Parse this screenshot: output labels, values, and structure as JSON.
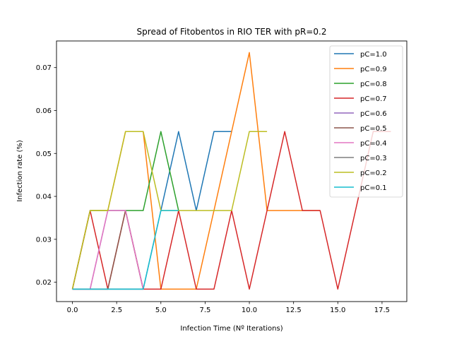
{
  "chart_data": {
    "type": "line",
    "title": "Spread of Fitobentos in RIO TER with pR=0.2",
    "xlabel": "Infection Time (Nº Iterations)",
    "ylabel": "Infection rate (%)",
    "xlim": [
      -0.9,
      18.9
    ],
    "ylim": [
      0.0155,
      0.0762
    ],
    "xticks": [
      0.0,
      2.5,
      5.0,
      7.5,
      10.0,
      12.5,
      15.0,
      17.5
    ],
    "xtick_labels": [
      "0.0",
      "2.5",
      "5.0",
      "7.5",
      "10.0",
      "12.5",
      "15.0",
      "17.5"
    ],
    "yticks": [
      0.02,
      0.03,
      0.04,
      0.05,
      0.06,
      0.07
    ],
    "ytick_labels": [
      "0.02",
      "0.03",
      "0.04",
      "0.05",
      "0.06",
      "0.07"
    ],
    "grid": false,
    "legend_position": "top-right",
    "series": [
      {
        "name": "pC=1.0",
        "color": "#1f77b4",
        "x": [
          0,
          1,
          2,
          3,
          4,
          5,
          6,
          7,
          8,
          9
        ],
        "y": [
          0.0184,
          0.0184,
          0.0184,
          0.0184,
          0.0184,
          0.0367,
          0.0551,
          0.0367,
          0.0551,
          0.0551
        ]
      },
      {
        "name": "pC=0.9",
        "color": "#ff7f0e",
        "x": [
          0,
          1,
          2,
          3,
          4,
          5,
          6,
          7,
          8,
          9,
          10,
          11,
          12,
          13,
          14
        ],
        "y": [
          0.0184,
          0.0367,
          0.0367,
          0.0551,
          0.0551,
          0.0184,
          0.0184,
          0.0184,
          0.0367,
          0.0551,
          0.0735,
          0.0367,
          0.0367,
          0.0367,
          0.0367
        ]
      },
      {
        "name": "pC=0.8",
        "color": "#2ca02c",
        "x": [
          0,
          1,
          2,
          3,
          4,
          5,
          6
        ],
        "y": [
          0.0184,
          0.0367,
          0.0367,
          0.0367,
          0.0367,
          0.0551,
          0.0367
        ]
      },
      {
        "name": "pC=0.7",
        "color": "#d62728",
        "x": [
          0,
          1,
          2,
          3,
          4,
          5,
          6,
          7,
          8,
          9,
          10,
          11,
          12,
          13,
          14,
          15,
          16,
          17,
          18
        ],
        "y": [
          0.0184,
          0.0367,
          0.0184,
          0.0367,
          0.0184,
          0.0184,
          0.0367,
          0.0184,
          0.0184,
          0.0367,
          0.0184,
          0.0367,
          0.0551,
          0.0367,
          0.0367,
          0.0184,
          0.0367,
          0.0551,
          0.0551
        ]
      },
      {
        "name": "pC=0.6",
        "color": "#9467bd",
        "x": [
          0,
          1,
          2,
          3,
          4
        ],
        "y": [
          0.0184,
          0.0184,
          0.0367,
          0.0367,
          0.0184
        ]
      },
      {
        "name": "pC=0.5",
        "color": "#8c564b",
        "x": [
          0,
          1,
          2,
          3,
          4
        ],
        "y": [
          0.0184,
          0.0184,
          0.0184,
          0.0367,
          0.0184
        ]
      },
      {
        "name": "pC=0.4",
        "color": "#e377c2",
        "x": [
          0,
          1,
          2,
          3,
          4
        ],
        "y": [
          0.0184,
          0.0184,
          0.0367,
          0.0367,
          0.0184
        ]
      },
      {
        "name": "pC=0.3",
        "color": "#7f7f7f",
        "x": [
          0,
          1,
          2,
          3,
          4
        ],
        "y": [
          0.0184,
          0.0184,
          0.0184,
          0.0184,
          0.0184
        ]
      },
      {
        "name": "pC=0.2",
        "color": "#bcbd22",
        "x": [
          0,
          1,
          2,
          3,
          4,
          5,
          6,
          7,
          8,
          9,
          10,
          11
        ],
        "y": [
          0.0184,
          0.0367,
          0.0367,
          0.0551,
          0.0551,
          0.0367,
          0.0367,
          0.0367,
          0.0367,
          0.0367,
          0.0551,
          0.0551
        ]
      },
      {
        "name": "pC=0.1",
        "color": "#17becf",
        "x": [
          0,
          1,
          2,
          3,
          4,
          5,
          6
        ],
        "y": [
          0.0184,
          0.0184,
          0.0184,
          0.0184,
          0.0184,
          0.0367,
          0.0367
        ]
      }
    ]
  }
}
